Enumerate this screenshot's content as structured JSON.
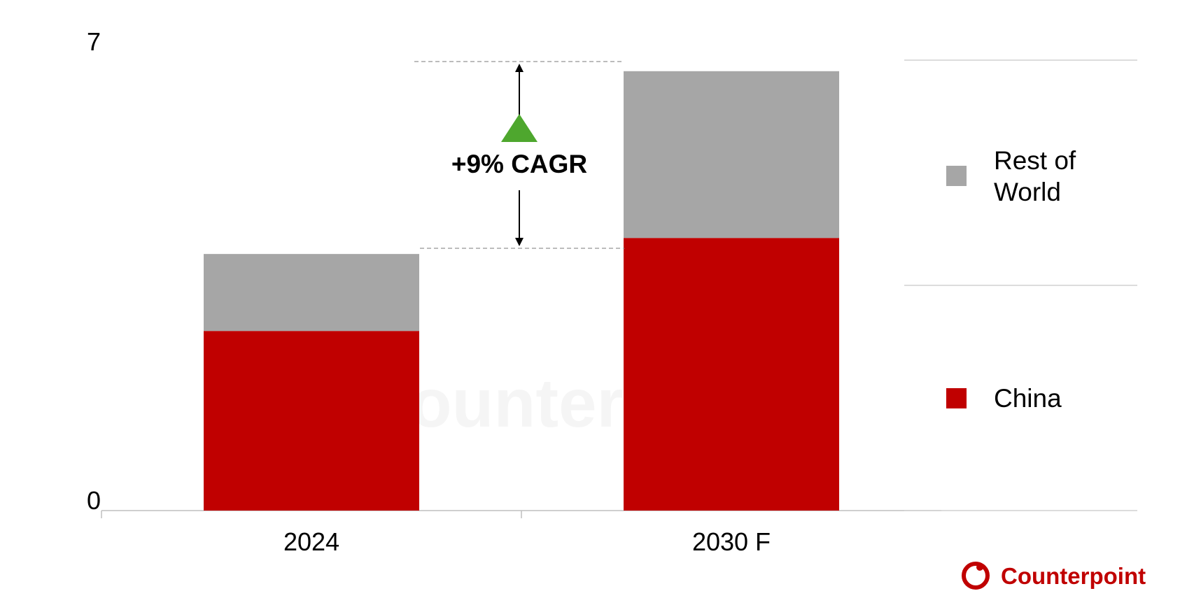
{
  "chart_data": {
    "type": "bar",
    "stacked": true,
    "categories": [
      "2024",
      "2030 F"
    ],
    "series": [
      {
        "name": "China",
        "color": "#c00000",
        "values": [
          2.8,
          4.25
        ]
      },
      {
        "name": "Rest of World",
        "color": "#a6a6a6",
        "values": [
          1.2,
          2.6
        ]
      }
    ],
    "ylim": [
      0,
      7
    ],
    "yticks": [
      "0",
      "7"
    ],
    "annotation": {
      "text": "+9% CAGR",
      "arrow_color": "#4ea72e"
    },
    "legend": {
      "placement": "right",
      "order": [
        "Rest of World",
        "China"
      ],
      "labels": {
        "Rest of World": [
          "Rest of",
          "World"
        ],
        "China": [
          "China"
        ]
      }
    },
    "title": "",
    "xlabel": "",
    "ylabel": ""
  },
  "branding": {
    "name": "Counterpoint",
    "color": "#c00000"
  }
}
